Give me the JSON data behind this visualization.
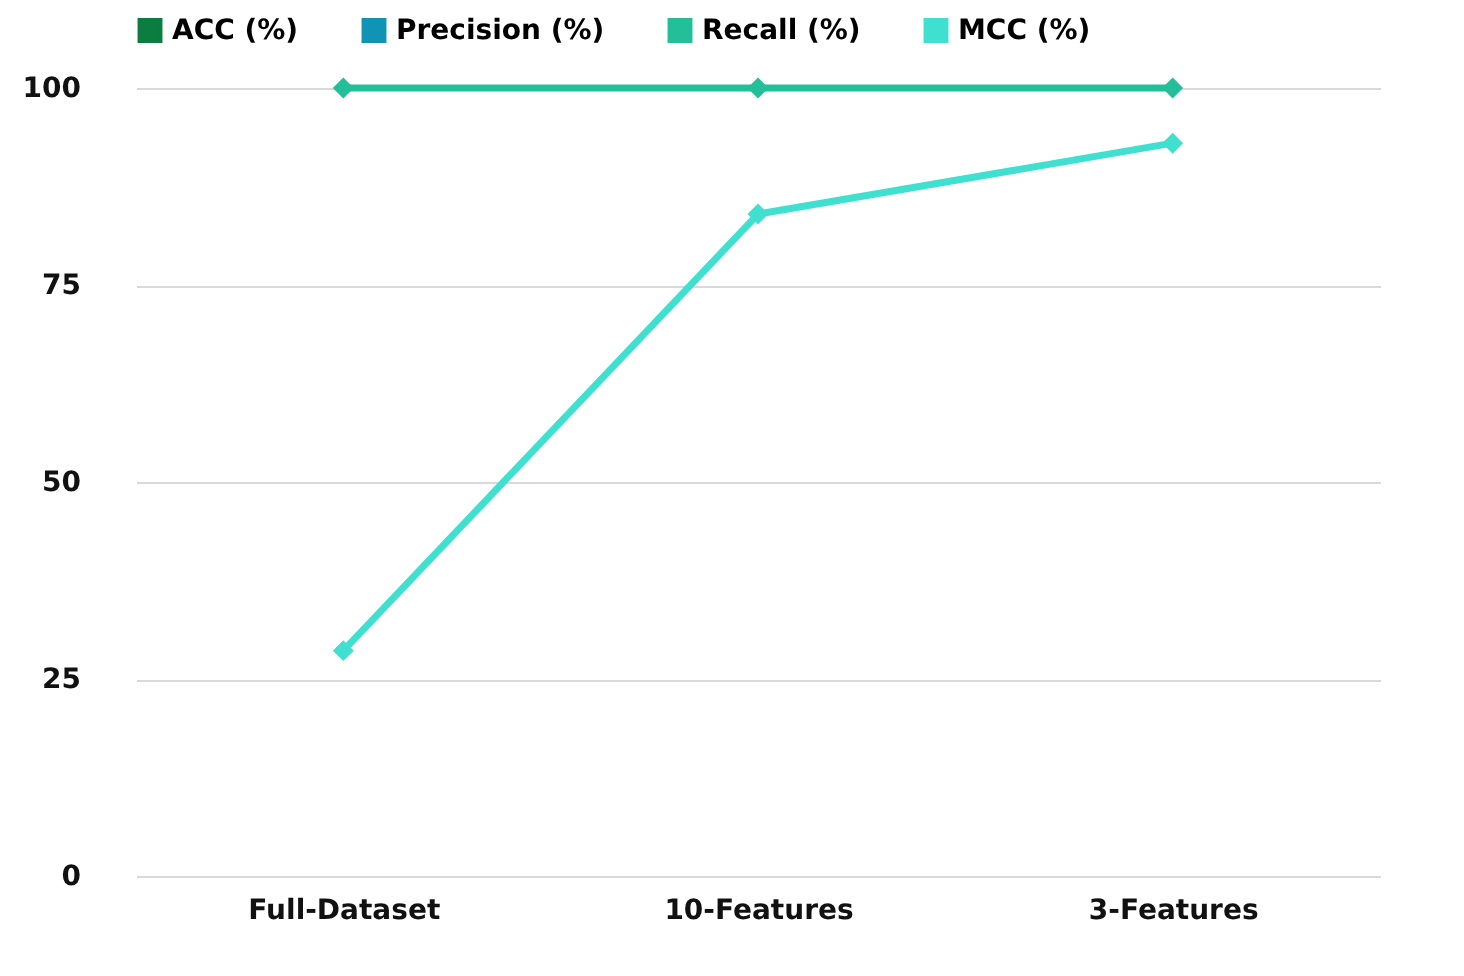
{
  "chart_data": {
    "type": "line",
    "categories": [
      "Full-Dataset",
      "10-Features",
      "3-Features"
    ],
    "series": [
      {
        "name": "ACC (%)",
        "color": "#0b7d3e",
        "values": [
          null,
          null,
          null
        ]
      },
      {
        "name": "Precision (%)",
        "color": "#1193b4",
        "values": [
          null,
          null,
          null
        ]
      },
      {
        "name": "Recall (%)",
        "color": "#22bf98",
        "values": [
          100,
          100,
          100
        ]
      },
      {
        "name": "MCC (%)",
        "color": "#40e0d0",
        "values": [
          28.6,
          84,
          93
        ]
      }
    ],
    "ylim": [
      0,
      100
    ],
    "yticks": [
      0,
      25,
      50,
      75,
      100
    ],
    "grid": "y",
    "legend": "top",
    "marker": "diamond",
    "line_style": "solid"
  }
}
